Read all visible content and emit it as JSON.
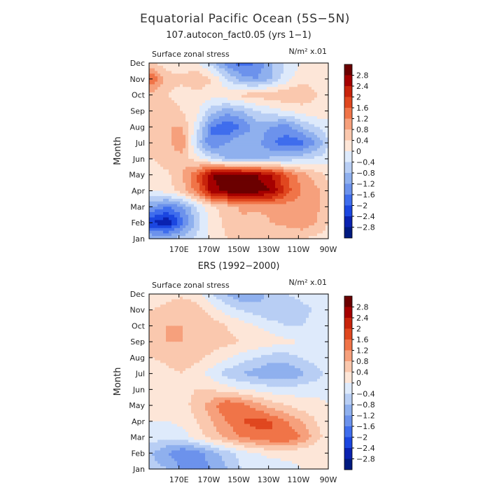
{
  "figure": {
    "title": "Equatorial Pacific Ocean (5S−5N)"
  },
  "chart_data": [
    {
      "type": "heatmap",
      "title": "107.autocon_fact0.05 (yrs 1−1)",
      "field_label": "Surface zonal stress",
      "units_label": "N/m² x.01",
      "ylabel": "Month",
      "xlabel": "",
      "months": [
        "Jan",
        "Feb",
        "Mar",
        "Apr",
        "May",
        "Jun",
        "Jul",
        "Aug",
        "Sep",
        "Oct",
        "Nov",
        "Dec"
      ],
      "x_ticks": [
        "170E",
        "170W",
        "150W",
        "130W",
        "110W",
        "90W"
      ],
      "x_tick_lons": [
        170,
        190,
        210,
        230,
        250,
        270
      ],
      "lon_range": [
        150,
        270
      ],
      "contour_levels": [
        -2.8,
        -2.4,
        -2,
        -1.6,
        -1.2,
        -0.8,
        -0.4,
        0,
        0.4,
        0.8,
        1.2,
        1.6,
        2,
        2.4,
        2.8
      ],
      "lons": [
        152,
        162,
        172,
        182,
        192,
        202,
        212,
        222,
        232,
        242,
        252,
        262,
        270
      ],
      "values": [
        [
          -0.8,
          -0.8,
          -0.6,
          -0.3,
          0.1,
          0.4,
          0.6,
          0.7,
          0.6,
          0.5,
          0.4,
          0.3,
          0.2
        ],
        [
          -2.4,
          -2.8,
          -1.8,
          -0.6,
          0.2,
          0.5,
          0.7,
          0.6,
          0.8,
          0.9,
          1.1,
          0.8,
          0.4
        ],
        [
          -1.2,
          -1.6,
          -1.2,
          -0.4,
          0.3,
          0.6,
          0.9,
          0.9,
          0.9,
          1.0,
          1.0,
          0.9,
          0.5
        ],
        [
          0.0,
          0.2,
          0.6,
          1.4,
          2.6,
          3.0,
          3.0,
          3.0,
          2.8,
          1.8,
          1.2,
          0.9,
          0.5
        ],
        [
          0.2,
          0.3,
          0.8,
          1.6,
          2.8,
          3.0,
          3.0,
          2.8,
          2.4,
          1.6,
          1.0,
          0.6,
          0.3
        ],
        [
          0.4,
          0.6,
          0.6,
          0.2,
          -0.4,
          -0.8,
          -1.0,
          -0.9,
          -0.7,
          -0.6,
          -0.5,
          -0.3,
          -0.2
        ],
        [
          0.4,
          0.6,
          1.2,
          -0.6,
          -1.6,
          -1.2,
          -0.8,
          -1.0,
          -1.6,
          -1.8,
          -1.8,
          -1.2,
          -0.4
        ],
        [
          0.5,
          0.8,
          0.8,
          -0.2,
          -1.6,
          -2.0,
          -1.6,
          -1.0,
          -1.2,
          -1.4,
          -0.8,
          -0.4,
          -0.2
        ],
        [
          0.6,
          0.7,
          0.4,
          0.1,
          -0.6,
          -1.0,
          -0.8,
          -0.4,
          -0.2,
          0.0,
          0.2,
          0.3,
          0.2
        ],
        [
          0.6,
          0.4,
          0.2,
          0.2,
          0.2,
          0.3,
          0.5,
          0.6,
          0.7,
          0.8,
          0.7,
          0.4,
          0.2
        ],
        [
          1.6,
          0.6,
          0.5,
          0.8,
          0.4,
          -0.4,
          -1.0,
          -1.2,
          -0.8,
          -0.2,
          0.3,
          0.3,
          0.2
        ],
        [
          0.4,
          0.2,
          0.1,
          0.0,
          -0.6,
          -1.4,
          -1.8,
          -1.6,
          -0.8,
          -0.3,
          0.0,
          0.1,
          0.1
        ]
      ]
    },
    {
      "type": "heatmap",
      "title": "ERS (1992−2000)",
      "field_label": "Surface zonal stress",
      "units_label": "N/m² x.01",
      "ylabel": "Month",
      "xlabel": "",
      "months": [
        "Jan",
        "Feb",
        "Mar",
        "Apr",
        "May",
        "Jun",
        "Jul",
        "Aug",
        "Sep",
        "Oct",
        "Nov",
        "Dec"
      ],
      "x_ticks": [
        "170E",
        "170W",
        "150W",
        "130W",
        "110W",
        "90W"
      ],
      "x_tick_lons": [
        170,
        190,
        210,
        230,
        250,
        270
      ],
      "lon_range": [
        150,
        270
      ],
      "contour_levels": [
        -2.8,
        -2.4,
        -2,
        -1.6,
        -1.2,
        -0.8,
        -0.4,
        0,
        0.4,
        0.8,
        1.2,
        1.6,
        2,
        2.4,
        2.8
      ],
      "lons": [
        152,
        162,
        172,
        182,
        192,
        202,
        212,
        222,
        232,
        242,
        252,
        262,
        270
      ],
      "values": [
        [
          -0.6,
          -0.8,
          -1.2,
          -1.4,
          -1.2,
          -0.8,
          -0.4,
          -0.3,
          -0.2,
          -0.1,
          0.0,
          0.0,
          0.0
        ],
        [
          -0.8,
          -1.2,
          -1.6,
          -1.4,
          -1.0,
          -0.6,
          -0.2,
          0.0,
          0.1,
          0.1,
          0.1,
          0.0,
          0.0
        ],
        [
          -0.2,
          -0.3,
          -0.2,
          0.2,
          0.6,
          0.9,
          1.2,
          1.4,
          1.6,
          1.6,
          1.2,
          0.6,
          0.2
        ],
        [
          0.0,
          0.0,
          0.1,
          0.4,
          0.8,
          1.2,
          1.6,
          1.8,
          1.6,
          1.2,
          0.8,
          0.4,
          0.1
        ],
        [
          0.0,
          0.0,
          0.2,
          0.6,
          1.0,
          1.6,
          1.4,
          1.0,
          0.6,
          0.4,
          0.2,
          0.1,
          0.0
        ],
        [
          0.0,
          0.1,
          0.3,
          0.4,
          0.4,
          0.2,
          0.0,
          -0.1,
          -0.2,
          -0.2,
          -0.2,
          -0.1,
          -0.1
        ],
        [
          0.2,
          0.3,
          0.4,
          0.2,
          -0.2,
          -0.6,
          -0.8,
          -1.0,
          -1.2,
          -1.2,
          -0.9,
          -0.6,
          -0.3
        ],
        [
          0.4,
          0.5,
          0.6,
          0.5,
          0.3,
          0.1,
          -0.2,
          -0.4,
          -0.6,
          -0.6,
          -0.4,
          -0.2,
          -0.1
        ],
        [
          0.6,
          0.8,
          0.8,
          0.7,
          0.6,
          0.5,
          0.4,
          0.3,
          0.2,
          0.1,
          0.0,
          0.0,
          0.0
        ],
        [
          0.6,
          0.8,
          0.8,
          0.8,
          0.6,
          0.4,
          0.2,
          0.0,
          -0.2,
          -0.4,
          -0.4,
          -0.2,
          -0.1
        ],
        [
          0.4,
          0.6,
          0.8,
          0.6,
          0.2,
          -0.2,
          -0.4,
          -0.6,
          -0.8,
          -0.8,
          -0.6,
          -0.3,
          -0.1
        ],
        [
          0.0,
          0.2,
          0.3,
          0.1,
          -0.4,
          -0.8,
          -1.2,
          -1.0,
          -0.6,
          -0.4,
          -0.2,
          -0.1,
          0.0
        ]
      ]
    }
  ],
  "colorbar": {
    "labels": [
      "2.8",
      "2.4",
      "2",
      "1.6",
      "1.2",
      "0.8",
      "0.4",
      "0",
      "−0.4",
      "−0.8",
      "−1.2",
      "−1.6",
      "−2",
      "−2.4",
      "−2.8"
    ],
    "colors": [
      "#6b0000",
      "#a50000",
      "#c8230b",
      "#e0471f",
      "#f07448",
      "#f6a07c",
      "#fac8ae",
      "#fde6d8",
      "#deeafb",
      "#b8cef4",
      "#8fb0ee",
      "#6c92ec",
      "#3f6ded",
      "#1b46e0",
      "#0a22b0",
      "#001a80"
    ]
  }
}
